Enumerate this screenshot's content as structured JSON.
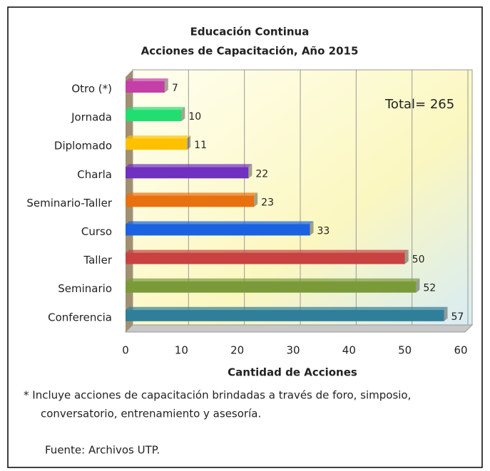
{
  "chart_data": {
    "type": "bar",
    "orientation": "horizontal",
    "title": "Educación Continua",
    "subtitle": "Acciones de Capacitación,  Año 2015",
    "categories": [
      "Otro (*)",
      "Jornada",
      "Diplomado",
      "Charla",
      "Seminario-Taller",
      "Curso",
      "Taller",
      "Seminario",
      "Conferencia"
    ],
    "values": [
      7,
      10,
      11,
      22,
      23,
      33,
      50,
      52,
      57
    ],
    "colors": [
      "#c43fa8",
      "#22dd70",
      "#ffc000",
      "#7030c0",
      "#e8700f",
      "#1a62e0",
      "#c84242",
      "#7a9a3a",
      "#2f7f9a"
    ],
    "xlim": [
      0,
      60
    ],
    "xticks": [
      0,
      10,
      20,
      30,
      40,
      50,
      60
    ],
    "x_label": "Cantidad de Acciones",
    "grid": true,
    "annotation": "Total= 265",
    "notes": [
      "*  Incluye acciones de capacitación brindadas  a través de  foro, simposio,",
      "conversatorio, entrenamiento y asesoría.",
      "Fuente: Archivos UTP."
    ]
  }
}
